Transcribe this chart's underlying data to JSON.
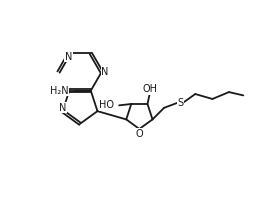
{
  "bg_color": "#ffffff",
  "line_color": "#1a1a1a",
  "line_width": 1.3,
  "font_size": 7.0,
  "fig_width": 2.76,
  "fig_height": 1.98,
  "dpi": 100,
  "xlim": [
    0,
    10
  ],
  "ylim": [
    0,
    7.17
  ]
}
